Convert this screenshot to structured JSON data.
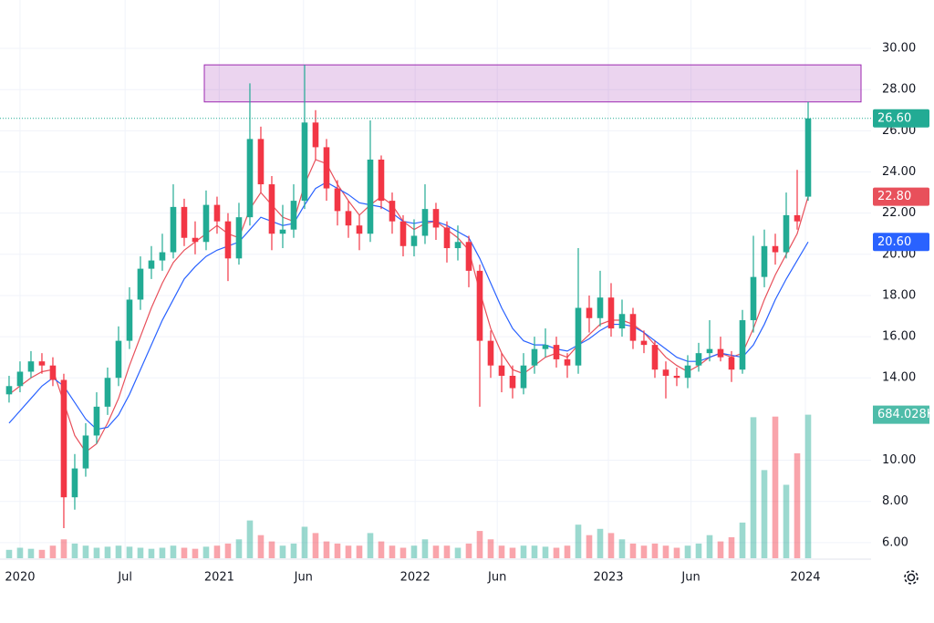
{
  "chart_data": {
    "type": "candlestick",
    "xlim": [
      -0.83,
      78.75
    ],
    "ylim": [
      5.24,
      32.35
    ],
    "xticks": [
      {
        "value": 1,
        "label": "2020"
      },
      {
        "value": 10.6,
        "label": "Jul"
      },
      {
        "value": 19.2,
        "label": "2021"
      },
      {
        "value": 26.9,
        "label": "Jun"
      },
      {
        "value": 37.1,
        "label": "2022"
      },
      {
        "value": 44.6,
        "label": "Jun"
      },
      {
        "value": 54.75,
        "label": "2023"
      },
      {
        "value": 62.3,
        "label": "Jun"
      },
      {
        "value": 72.75,
        "label": "2024"
      }
    ],
    "yticks": [
      {
        "value": 30,
        "label": "30.00"
      },
      {
        "value": 28,
        "label": "28.00"
      },
      {
        "value": 26,
        "label": "26.00"
      },
      {
        "value": 24,
        "label": "24.00"
      },
      {
        "value": 22,
        "label": "22.00"
      },
      {
        "value": 20,
        "label": "20.00"
      },
      {
        "value": 18,
        "label": "18.00"
      },
      {
        "value": 16,
        "label": "16.00"
      },
      {
        "value": 14,
        "label": "14.00"
      },
      {
        "value": 10,
        "label": "10.00"
      },
      {
        "value": 8,
        "label": "8.00"
      },
      {
        "value": 6,
        "label": "6.00"
      }
    ],
    "grid": true,
    "zone": [
      27.4,
      29.2
    ],
    "candles": {
      "color_up": "#22ab94",
      "color_down": "#f23645",
      "open": [
        13.2,
        13.6,
        14.3,
        14.8,
        14.6,
        13.9,
        8.2,
        9.6,
        11.2,
        12.6,
        14.0,
        15.8,
        17.8,
        19.3,
        19.7,
        20.1,
        22.3,
        20.8,
        20.6,
        22.4,
        21.6,
        19.8,
        21.8,
        25.6,
        23.4,
        21.0,
        21.2,
        22.6,
        26.4,
        25.2,
        23.2,
        22.1,
        21.4,
        21.0,
        24.6,
        22.6,
        21.6,
        20.4,
        20.9,
        22.2,
        21.3,
        20.3,
        20.6,
        19.2,
        15.8,
        14.6,
        14.1,
        13.5,
        14.6,
        15.4,
        15.6,
        14.9,
        14.6,
        17.4,
        16.9,
        17.9,
        16.4,
        17.1,
        15.8,
        15.6,
        14.4,
        14.1,
        14.0,
        14.6,
        15.2,
        15.4,
        15.0,
        14.4,
        16.8,
        18.9,
        20.4,
        20.1,
        21.9,
        22.8
      ],
      "high": [
        14.1,
        14.8,
        15.3,
        15.2,
        15.0,
        14.2,
        10.3,
        11.8,
        13.3,
        14.5,
        16.5,
        18.4,
        19.9,
        20.4,
        21.0,
        23.4,
        22.7,
        21.6,
        23.1,
        22.8,
        22.0,
        22.5,
        28.3,
        26.2,
        23.8,
        22.4,
        23.4,
        29.2,
        27.0,
        25.6,
        23.6,
        22.6,
        21.9,
        26.5,
        24.8,
        23.0,
        21.9,
        21.7,
        23.4,
        22.5,
        21.6,
        21.4,
        20.9,
        19.5,
        16.3,
        15.2,
        14.6,
        15.2,
        16.0,
        16.4,
        16.0,
        15.2,
        20.3,
        18.0,
        19.2,
        18.6,
        17.8,
        17.4,
        16.3,
        15.8,
        14.8,
        14.5,
        15.1,
        15.7,
        16.8,
        16.0,
        15.3,
        17.3,
        20.9,
        21.2,
        21.0,
        23.0,
        24.1,
        27.4
      ],
      "low": [
        12.8,
        13.3,
        14.0,
        14.2,
        13.6,
        6.7,
        7.6,
        9.2,
        10.8,
        12.2,
        13.6,
        15.4,
        17.3,
        18.8,
        19.2,
        19.8,
        20.4,
        20.0,
        20.2,
        21.0,
        18.7,
        19.5,
        21.4,
        23.0,
        20.2,
        20.3,
        20.8,
        22.2,
        24.6,
        22.6,
        21.4,
        20.8,
        20.2,
        20.6,
        22.2,
        21.0,
        19.9,
        19.9,
        20.5,
        20.7,
        19.6,
        19.7,
        18.4,
        12.6,
        14.0,
        13.3,
        13.0,
        13.2,
        14.2,
        15.0,
        14.5,
        14.0,
        14.2,
        16.2,
        16.5,
        16.0,
        16.0,
        15.4,
        15.2,
        14.0,
        13.0,
        13.6,
        13.5,
        14.3,
        14.8,
        14.8,
        13.8,
        14.2,
        16.2,
        18.4,
        19.5,
        19.8,
        21.2,
        22.6
      ],
      "close": [
        13.6,
        14.3,
        14.8,
        14.6,
        13.9,
        8.2,
        9.6,
        11.2,
        12.6,
        14.0,
        15.8,
        17.8,
        19.3,
        19.7,
        20.1,
        22.3,
        20.8,
        20.6,
        22.4,
        21.6,
        19.8,
        21.8,
        25.6,
        23.4,
        21.0,
        21.2,
        22.6,
        26.4,
        25.2,
        23.2,
        22.1,
        21.4,
        21.0,
        24.6,
        22.6,
        21.6,
        20.4,
        20.9,
        22.2,
        21.3,
        20.3,
        20.6,
        19.2,
        15.8,
        14.6,
        14.1,
        13.5,
        14.6,
        15.4,
        15.6,
        14.9,
        14.6,
        17.4,
        16.9,
        17.9,
        16.4,
        17.1,
        15.8,
        15.6,
        14.4,
        14.1,
        14.0,
        14.6,
        15.2,
        15.4,
        15.0,
        14.4,
        16.8,
        18.9,
        20.4,
        20.1,
        21.9,
        21.6,
        26.6
      ],
      "last_label": "26.60"
    },
    "moving_averages": [
      {
        "color": "#e8505b",
        "last_label": "22.80",
        "values": [
          13.2,
          13.6,
          14.0,
          14.3,
          14.4,
          12.8,
          11.2,
          10.4,
          10.8,
          11.8,
          13.0,
          14.6,
          16.0,
          17.4,
          18.6,
          19.6,
          20.2,
          20.6,
          21.0,
          21.4,
          21.0,
          20.8,
          22.2,
          23.0,
          22.4,
          21.8,
          21.6,
          23.4,
          24.6,
          24.4,
          23.4,
          22.6,
          21.9,
          22.4,
          22.8,
          22.4,
          21.6,
          21.2,
          21.5,
          21.6,
          21.2,
          20.8,
          20.2,
          18.2,
          16.4,
          15.2,
          14.4,
          14.2,
          14.6,
          15.0,
          15.2,
          15.0,
          15.6,
          16.1,
          16.6,
          16.8,
          16.8,
          16.6,
          16.2,
          15.6,
          15.0,
          14.6,
          14.3,
          14.6,
          15.0,
          15.2,
          15.0,
          15.2,
          16.4,
          17.8,
          19.0,
          20.0,
          21.0,
          22.8
        ]
      },
      {
        "color": "#2962ff",
        "last_label": "20.60",
        "values": [
          11.8,
          12.4,
          13.0,
          13.6,
          14.0,
          13.6,
          12.8,
          12.0,
          11.5,
          11.6,
          12.2,
          13.2,
          14.4,
          15.6,
          16.8,
          17.8,
          18.8,
          19.4,
          19.9,
          20.2,
          20.4,
          20.6,
          21.2,
          21.8,
          21.6,
          21.4,
          21.5,
          22.4,
          23.2,
          23.5,
          23.2,
          22.9,
          22.5,
          22.4,
          22.3,
          22.0,
          21.6,
          21.5,
          21.6,
          21.6,
          21.4,
          21.1,
          20.8,
          19.8,
          18.6,
          17.4,
          16.4,
          15.8,
          15.6,
          15.6,
          15.4,
          15.3,
          15.6,
          15.9,
          16.3,
          16.6,
          16.6,
          16.5,
          16.2,
          15.8,
          15.4,
          15.0,
          14.8,
          14.8,
          15.0,
          15.2,
          15.1,
          15.0,
          15.6,
          16.6,
          17.8,
          18.8,
          19.7,
          20.6
        ]
      }
    ],
    "volume": {
      "vlim": [
        0,
        2660
      ],
      "axis_tag": {
        "value": 684.028,
        "label": "684.028K"
      },
      "values": [
        40,
        50,
        45,
        40,
        60,
        90,
        70,
        60,
        50,
        55,
        60,
        55,
        50,
        45,
        50,
        60,
        50,
        45,
        55,
        60,
        70,
        90,
        180,
        110,
        80,
        60,
        70,
        150,
        120,
        80,
        70,
        60,
        60,
        120,
        80,
        60,
        50,
        60,
        90,
        60,
        60,
        50,
        70,
        130,
        90,
        60,
        50,
        60,
        60,
        55,
        50,
        60,
        160,
        110,
        140,
        120,
        90,
        70,
        60,
        70,
        60,
        50,
        60,
        70,
        110,
        80,
        100,
        170,
        672,
        420,
        675,
        350,
        500,
        684.028
      ]
    }
  }
}
